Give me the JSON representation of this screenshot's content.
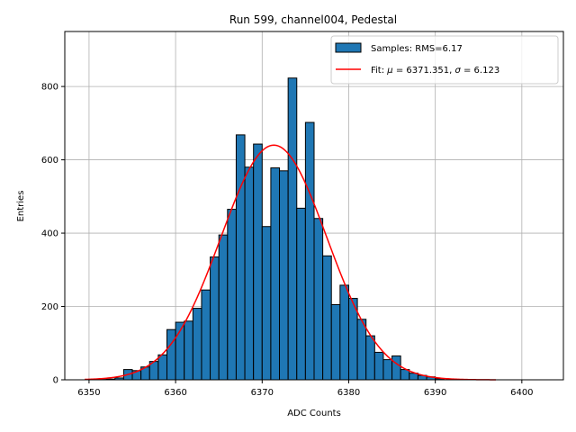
{
  "chart_data": {
    "type": "bar",
    "title": "Run 599, channel004, Pedestal",
    "xlabel": "ADC Counts",
    "ylabel": "Entries",
    "xlim": [
      6347.2,
      6404.8
    ],
    "ylim": [
      0,
      950
    ],
    "xticks": [
      6350,
      6360,
      6370,
      6380,
      6390,
      6400
    ],
    "yticks": [
      0,
      200,
      400,
      600,
      800
    ],
    "grid": true,
    "legend_position": "top-right",
    "bin_width": 1,
    "histogram": {
      "name": "Samples: RMS=6.17",
      "color": "#1f77b4",
      "bin_start": [
        6350,
        6351,
        6352,
        6353,
        6354,
        6355,
        6356,
        6357,
        6358,
        6359,
        6360,
        6361,
        6362,
        6363,
        6364,
        6365,
        6366,
        6367,
        6368,
        6369,
        6370,
        6371,
        6372,
        6373,
        6374,
        6375,
        6376,
        6377,
        6378,
        6379,
        6380,
        6381,
        6382,
        6383,
        6384,
        6385,
        6386,
        6387,
        6388,
        6389,
        6390
      ],
      "counts": [
        1,
        1,
        2,
        5,
        28,
        25,
        35,
        50,
        68,
        137,
        157,
        160,
        195,
        245,
        335,
        395,
        465,
        668,
        580,
        643,
        418,
        578,
        570,
        823,
        468,
        702,
        440,
        338,
        205,
        258,
        222,
        165,
        120,
        75,
        55,
        65,
        28,
        18,
        12,
        8,
        3
      ]
    },
    "fit": {
      "name": "Fit: μ = 6371.351, σ = 6.123",
      "label_parts": [
        "Fit: ",
        "μ",
        " = 6371.351, ",
        "σ",
        " = 6.123"
      ],
      "color": "#ff0000",
      "mu": 6371.351,
      "sigma": 6.123,
      "amplitude": 640,
      "x_range": [
        6349.5,
        6397
      ]
    }
  }
}
